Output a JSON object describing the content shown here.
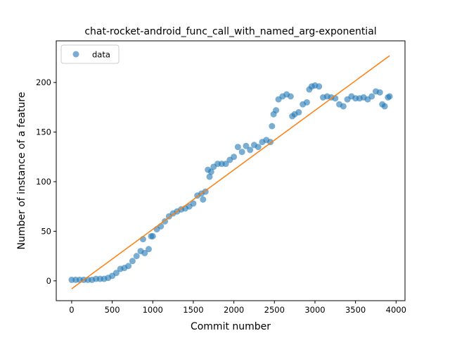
{
  "chart_data": {
    "type": "scatter",
    "title": "chat-rocket-android_func_call_with_named_arg-exponential",
    "xlabel": "Commit number",
    "ylabel": "Number of instance of a feature",
    "xlim": [
      -190,
      4110
    ],
    "ylim": [
      -20,
      242
    ],
    "xticks": [
      0,
      500,
      1000,
      1500,
      2000,
      2500,
      3000,
      3500,
      4000
    ],
    "yticks": [
      0,
      50,
      100,
      150,
      200
    ],
    "xtick_labels": [
      "0",
      "500",
      "1000",
      "1500",
      "2000",
      "2500",
      "3000",
      "3500",
      "4000"
    ],
    "ytick_labels": [
      "0",
      "50",
      "100",
      "150",
      "200"
    ],
    "grid": false,
    "legend": {
      "position": "upper-left",
      "entries": [
        "data"
      ]
    },
    "colors": {
      "data": "#1f77b4",
      "fit": "#ff7f0e"
    },
    "series": [
      {
        "name": "data",
        "kind": "scatter",
        "points": [
          [
            0,
            1
          ],
          [
            50,
            1
          ],
          [
            100,
            1
          ],
          [
            150,
            1
          ],
          [
            200,
            1
          ],
          [
            250,
            1
          ],
          [
            300,
            2
          ],
          [
            350,
            2
          ],
          [
            400,
            2
          ],
          [
            450,
            3
          ],
          [
            500,
            5
          ],
          [
            550,
            8
          ],
          [
            600,
            12
          ],
          [
            650,
            13
          ],
          [
            700,
            15
          ],
          [
            750,
            20
          ],
          [
            800,
            25
          ],
          [
            850,
            30
          ],
          [
            880,
            42
          ],
          [
            900,
            28
          ],
          [
            950,
            32
          ],
          [
            980,
            45
          ],
          [
            1000,
            45
          ],
          [
            1050,
            52
          ],
          [
            1100,
            55
          ],
          [
            1150,
            60
          ],
          [
            1200,
            65
          ],
          [
            1250,
            68
          ],
          [
            1300,
            70
          ],
          [
            1350,
            72
          ],
          [
            1400,
            73
          ],
          [
            1450,
            75
          ],
          [
            1500,
            78
          ],
          [
            1550,
            86
          ],
          [
            1600,
            88
          ],
          [
            1620,
            82
          ],
          [
            1650,
            90
          ],
          [
            1680,
            112
          ],
          [
            1700,
            105
          ],
          [
            1720,
            110
          ],
          [
            1750,
            115
          ],
          [
            1800,
            118
          ],
          [
            1850,
            118
          ],
          [
            1900,
            118
          ],
          [
            1950,
            122
          ],
          [
            2000,
            125
          ],
          [
            2050,
            135
          ],
          [
            2100,
            130
          ],
          [
            2150,
            136
          ],
          [
            2200,
            132
          ],
          [
            2250,
            137
          ],
          [
            2300,
            135
          ],
          [
            2350,
            140
          ],
          [
            2400,
            142
          ],
          [
            2450,
            140
          ],
          [
            2470,
            156
          ],
          [
            2490,
            168
          ],
          [
            2520,
            172
          ],
          [
            2550,
            183
          ],
          [
            2600,
            186
          ],
          [
            2650,
            188
          ],
          [
            2700,
            186
          ],
          [
            2720,
            166
          ],
          [
            2750,
            168
          ],
          [
            2800,
            170
          ],
          [
            2850,
            178
          ],
          [
            2900,
            180
          ],
          [
            2930,
            193
          ],
          [
            2960,
            196
          ],
          [
            3000,
            197
          ],
          [
            3050,
            196
          ],
          [
            3100,
            185
          ],
          [
            3150,
            186
          ],
          [
            3200,
            185
          ],
          [
            3250,
            184
          ],
          [
            3300,
            178
          ],
          [
            3350,
            176
          ],
          [
            3400,
            183
          ],
          [
            3450,
            186
          ],
          [
            3500,
            184
          ],
          [
            3550,
            184
          ],
          [
            3600,
            185
          ],
          [
            3650,
            183
          ],
          [
            3700,
            186
          ],
          [
            3750,
            191
          ],
          [
            3800,
            190
          ],
          [
            3830,
            178
          ],
          [
            3860,
            176
          ],
          [
            3900,
            185
          ],
          [
            3920,
            186
          ]
        ]
      },
      {
        "name": "",
        "kind": "line",
        "points": [
          [
            0,
            -8
          ],
          [
            3920,
            227
          ]
        ]
      }
    ]
  }
}
